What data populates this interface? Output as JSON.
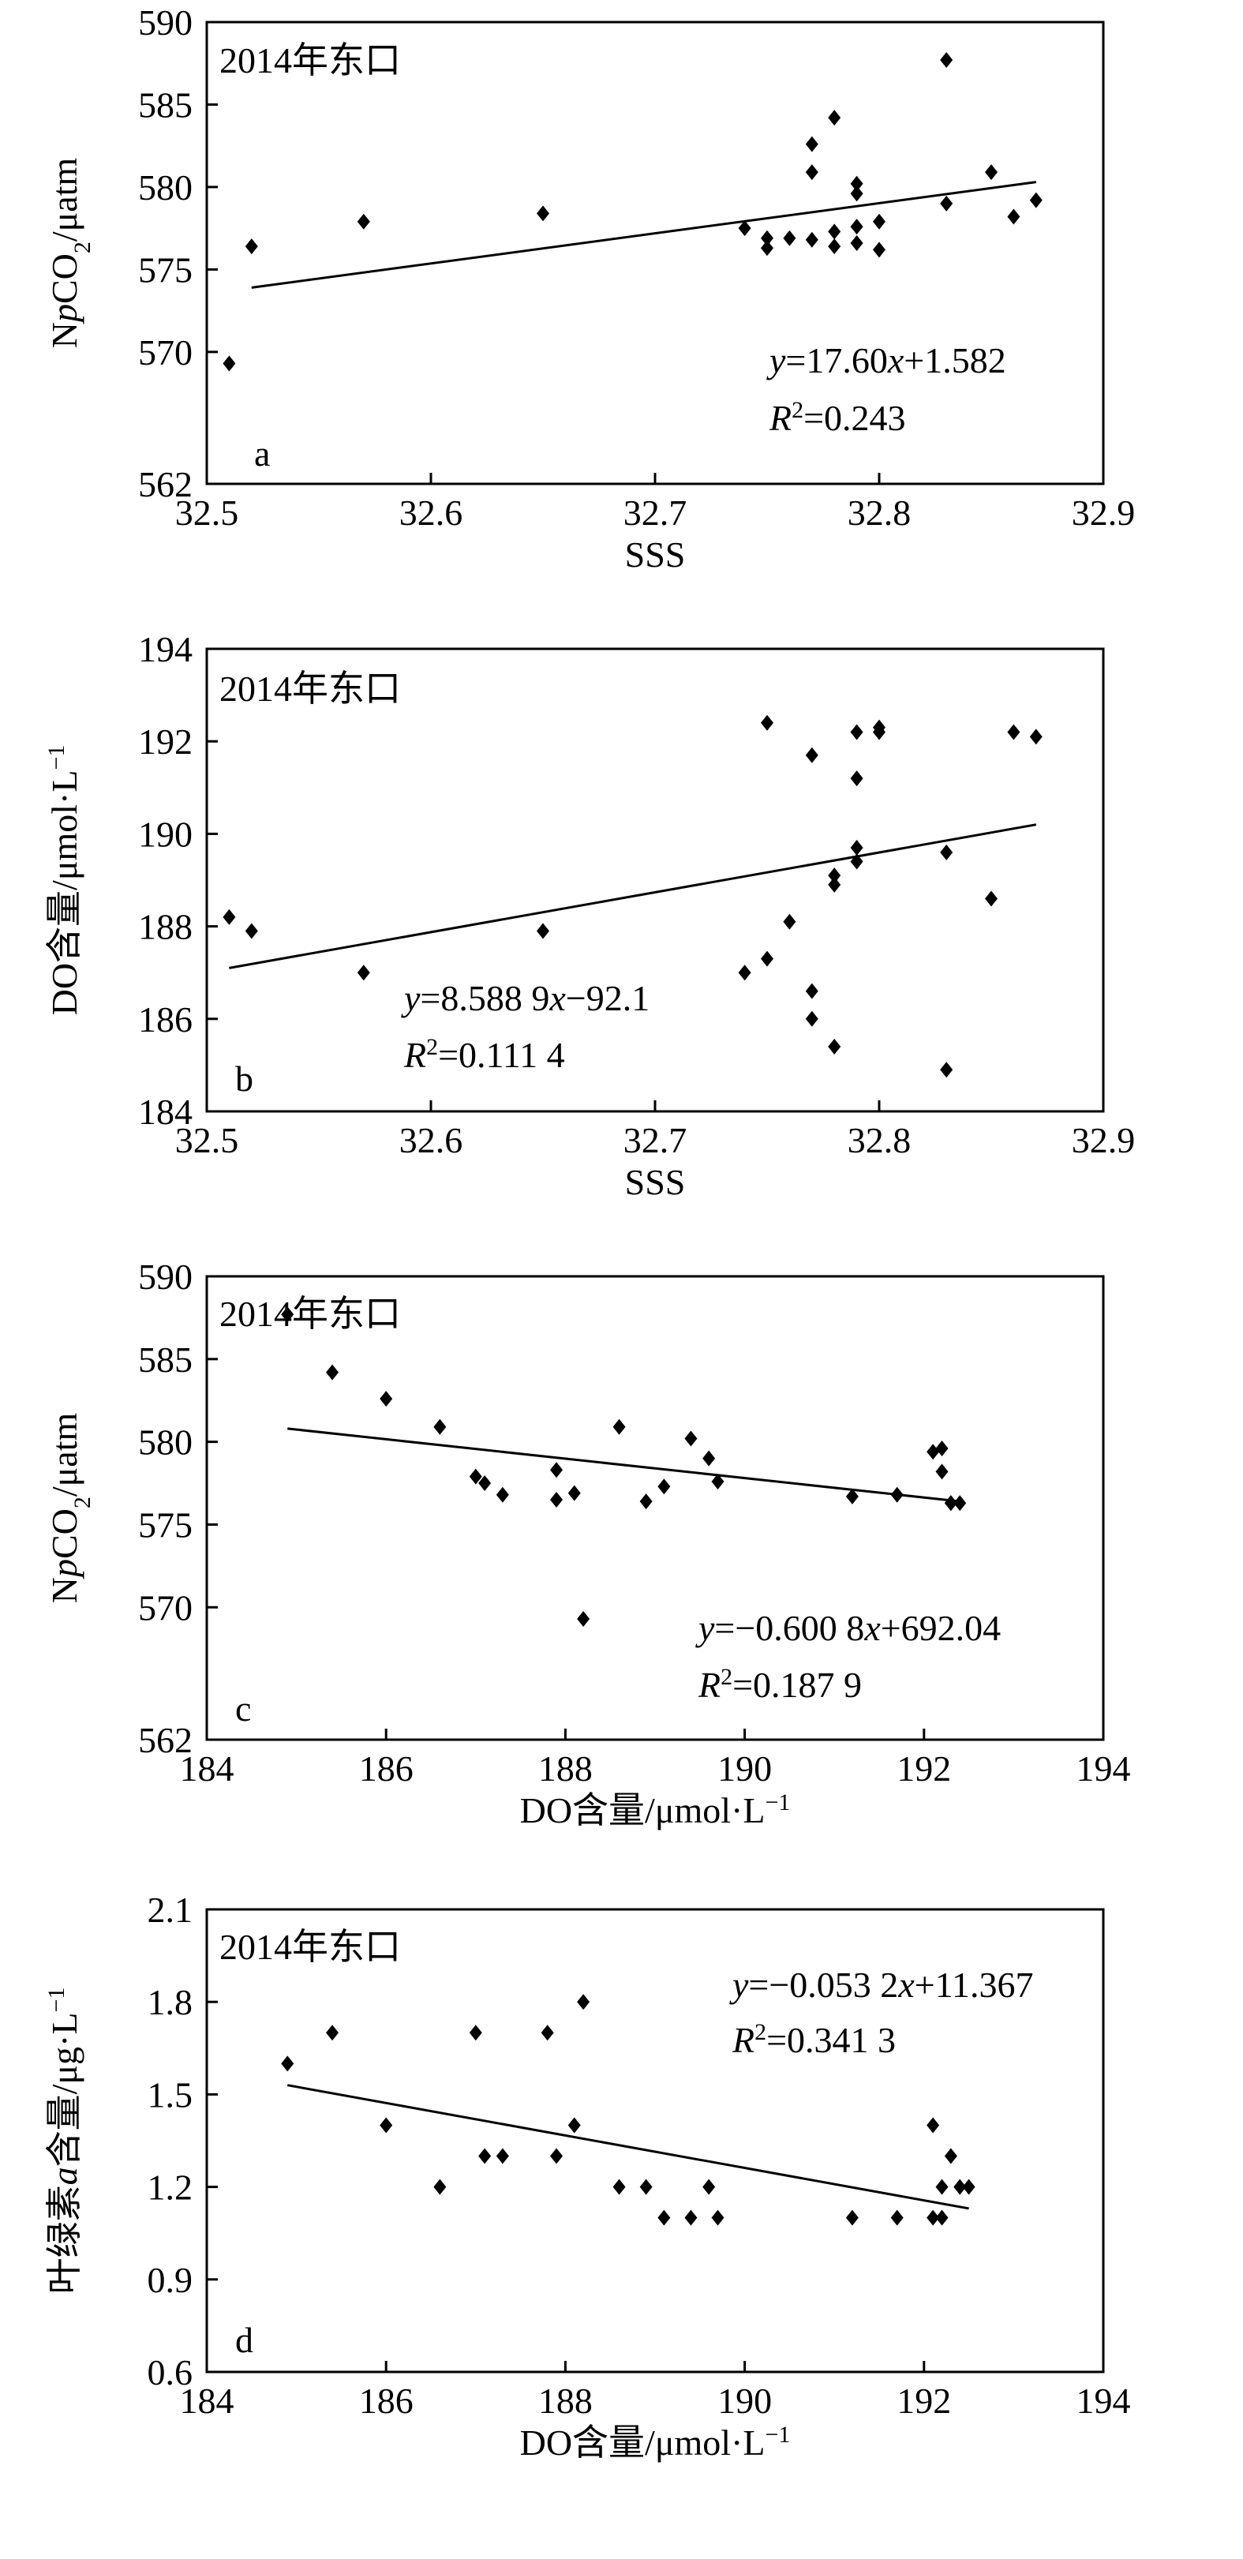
{
  "chart_data": [
    {
      "type": "scatter",
      "panel_label": "a",
      "title": "2014年东口",
      "xlabel": "SSS",
      "ylabel": {
        "pre": "N",
        "italic": "p",
        "post1": "CO",
        "sub": "2",
        "post2": "/μatm"
      },
      "xlim": [
        32.5,
        32.9
      ],
      "ylim": [
        562,
        590
      ],
      "xticks": [
        32.5,
        32.6,
        32.7,
        32.8,
        32.9
      ],
      "xtick_labels": [
        "32.5",
        "32.6",
        "32.7",
        "32.8",
        "32.9"
      ],
      "yticks": [
        562,
        570,
        575,
        580,
        585,
        590
      ],
      "ytick_labels": [
        "562",
        "570",
        "575",
        "580",
        "585",
        "590"
      ],
      "grid": false,
      "legend": "none",
      "equation": {
        "y": "y",
        "mid": "=17.60",
        "x": "x",
        "post": "+1.582"
      },
      "r2": {
        "R": "R",
        "sup": "2",
        "post": "=0.243"
      },
      "trendline": [
        [
          32.52,
          573.9
        ],
        [
          32.87,
          580.3
        ]
      ],
      "points": [
        [
          32.51,
          569.3
        ],
        [
          32.52,
          576.4
        ],
        [
          32.57,
          577.9
        ],
        [
          32.65,
          578.4
        ],
        [
          32.74,
          577.5
        ],
        [
          32.75,
          576.9
        ],
        [
          32.75,
          576.3
        ],
        [
          32.76,
          576.9
        ],
        [
          32.77,
          582.6
        ],
        [
          32.77,
          580.9
        ],
        [
          32.77,
          576.8
        ],
        [
          32.78,
          584.2
        ],
        [
          32.78,
          577.3
        ],
        [
          32.78,
          576.4
        ],
        [
          32.79,
          580.2
        ],
        [
          32.79,
          579.6
        ],
        [
          32.79,
          577.6
        ],
        [
          32.79,
          576.6
        ],
        [
          32.8,
          577.9
        ],
        [
          32.8,
          576.2
        ],
        [
          32.83,
          587.7
        ],
        [
          32.83,
          579.0
        ],
        [
          32.85,
          580.9
        ],
        [
          32.86,
          578.2
        ],
        [
          32.87,
          579.2
        ]
      ]
    },
    {
      "type": "scatter",
      "panel_label": "b",
      "title": "2014年东口",
      "xlabel": "SSS",
      "ylabel": {
        "pre": "DO含量/μmol·L",
        "sup": "−1"
      },
      "xlim": [
        32.5,
        32.9
      ],
      "ylim": [
        184,
        194
      ],
      "xticks": [
        32.5,
        32.6,
        32.7,
        32.8,
        32.9
      ],
      "xtick_labels": [
        "32.5",
        "32.6",
        "32.7",
        "32.8",
        "32.9"
      ],
      "yticks": [
        184,
        186,
        188,
        190,
        192,
        194
      ],
      "ytick_labels": [
        "184",
        "186",
        "188",
        "190",
        "192",
        "194"
      ],
      "grid": false,
      "legend": "none",
      "equation": {
        "y": "y",
        "mid": "=8.588 9",
        "x": "x",
        "post": "−92.1"
      },
      "r2": {
        "R": "R",
        "sup": "2",
        "post": "=0.111 4"
      },
      "trendline": [
        [
          32.51,
          187.1
        ],
        [
          32.87,
          190.2
        ]
      ],
      "points": [
        [
          32.51,
          188.2
        ],
        [
          32.52,
          187.9
        ],
        [
          32.57,
          187.0
        ],
        [
          32.65,
          187.9
        ],
        [
          32.74,
          187.0
        ],
        [
          32.75,
          192.4
        ],
        [
          32.75,
          187.3
        ],
        [
          32.76,
          188.1
        ],
        [
          32.77,
          191.7
        ],
        [
          32.77,
          186.6
        ],
        [
          32.77,
          186.0
        ],
        [
          32.78,
          189.1
        ],
        [
          32.78,
          188.9
        ],
        [
          32.78,
          185.4
        ],
        [
          32.79,
          192.2
        ],
        [
          32.79,
          191.2
        ],
        [
          32.79,
          189.7
        ],
        [
          32.79,
          189.4
        ],
        [
          32.8,
          192.3
        ],
        [
          32.8,
          192.2
        ],
        [
          32.83,
          189.6
        ],
        [
          32.83,
          184.9
        ],
        [
          32.85,
          188.6
        ],
        [
          32.86,
          192.2
        ],
        [
          32.87,
          192.1
        ]
      ]
    },
    {
      "type": "scatter",
      "panel_label": "c",
      "title": "2014年东口",
      "xlabel": {
        "pre": "DO含量/μmol·L",
        "sup": "−1"
      },
      "ylabel": {
        "pre": "N",
        "italic": "p",
        "post1": "CO",
        "sub": "2",
        "post2": "/μatm"
      },
      "xlim": [
        184,
        194
      ],
      "ylim": [
        562,
        590
      ],
      "xticks": [
        184,
        186,
        188,
        190,
        192,
        194
      ],
      "xtick_labels": [
        "184",
        "186",
        "188",
        "190",
        "192",
        "194"
      ],
      "yticks": [
        562,
        570,
        575,
        580,
        585,
        590
      ],
      "ytick_labels": [
        "562",
        "570",
        "575",
        "580",
        "585",
        "590"
      ],
      "grid": false,
      "legend": "none",
      "equation": {
        "y": "y",
        "mid": "=−0.600 8",
        "x": "x",
        "post": "+692.04"
      },
      "r2": {
        "R": "R",
        "sup": "2",
        "post": "=0.187 9"
      },
      "trendline": [
        [
          184.9,
          580.8
        ],
        [
          192.4,
          576.4
        ]
      ],
      "points": [
        [
          184.9,
          587.7
        ],
        [
          185.4,
          584.2
        ],
        [
          186.0,
          582.6
        ],
        [
          186.6,
          580.9
        ],
        [
          187.0,
          577.9
        ],
        [
          187.1,
          577.5
        ],
        [
          187.3,
          576.8
        ],
        [
          187.9,
          578.3
        ],
        [
          187.9,
          576.5
        ],
        [
          188.1,
          576.9
        ],
        [
          188.2,
          569.3
        ],
        [
          188.6,
          580.9
        ],
        [
          188.9,
          576.4
        ],
        [
          189.1,
          577.3
        ],
        [
          189.4,
          580.2
        ],
        [
          189.6,
          579.0
        ],
        [
          189.7,
          577.6
        ],
        [
          191.2,
          576.7
        ],
        [
          191.7,
          576.8
        ],
        [
          192.1,
          579.4
        ],
        [
          192.2,
          579.6
        ],
        [
          192.2,
          578.2
        ],
        [
          192.3,
          576.3
        ],
        [
          192.3,
          576.3
        ],
        [
          192.4,
          576.3
        ]
      ]
    },
    {
      "type": "scatter",
      "panel_label": "d",
      "title": "2014年东口",
      "xlabel": {
        "pre": "DO含量/μmol·L",
        "sup": "−1"
      },
      "ylabel": {
        "pre": "叶绿素",
        "italic": "a",
        "post": "含量/μg·L",
        "sup": "−1"
      },
      "xlim": [
        184,
        194
      ],
      "ylim": [
        0.6,
        2.1
      ],
      "xticks": [
        184,
        186,
        188,
        190,
        192,
        194
      ],
      "xtick_labels": [
        "184",
        "186",
        "188",
        "190",
        "192",
        "194"
      ],
      "yticks": [
        0.6,
        0.9,
        1.2,
        1.5,
        1.8,
        2.1
      ],
      "ytick_labels": [
        "0.6",
        "0.9",
        "1.2",
        "1.5",
        "1.8",
        "2.1"
      ],
      "grid": false,
      "legend": "none",
      "equation": {
        "y": "y",
        "mid": "=−0.053 2",
        "x": "x",
        "post": "+11.367"
      },
      "r2": {
        "R": "R",
        "sup": "2",
        "post": "=0.341 3"
      },
      "trendline": [
        [
          184.9,
          1.53
        ],
        [
          192.5,
          1.13
        ]
      ],
      "points": [
        [
          184.9,
          1.6
        ],
        [
          185.4,
          1.7
        ],
        [
          186.0,
          1.4
        ],
        [
          186.6,
          1.2
        ],
        [
          187.0,
          1.7
        ],
        [
          187.1,
          1.3
        ],
        [
          187.3,
          1.3
        ],
        [
          187.8,
          1.7
        ],
        [
          187.9,
          1.3
        ],
        [
          188.1,
          1.4
        ],
        [
          188.2,
          1.8
        ],
        [
          188.6,
          1.2
        ],
        [
          188.9,
          1.2
        ],
        [
          189.1,
          1.1
        ],
        [
          189.4,
          1.1
        ],
        [
          189.6,
          1.2
        ],
        [
          189.7,
          1.1
        ],
        [
          191.2,
          1.1
        ],
        [
          191.7,
          1.1
        ],
        [
          192.1,
          1.4
        ],
        [
          192.1,
          1.1
        ],
        [
          192.2,
          1.1
        ],
        [
          192.2,
          1.2
        ],
        [
          192.3,
          1.3
        ],
        [
          192.4,
          1.2
        ],
        [
          192.5,
          1.2
        ]
      ]
    }
  ]
}
